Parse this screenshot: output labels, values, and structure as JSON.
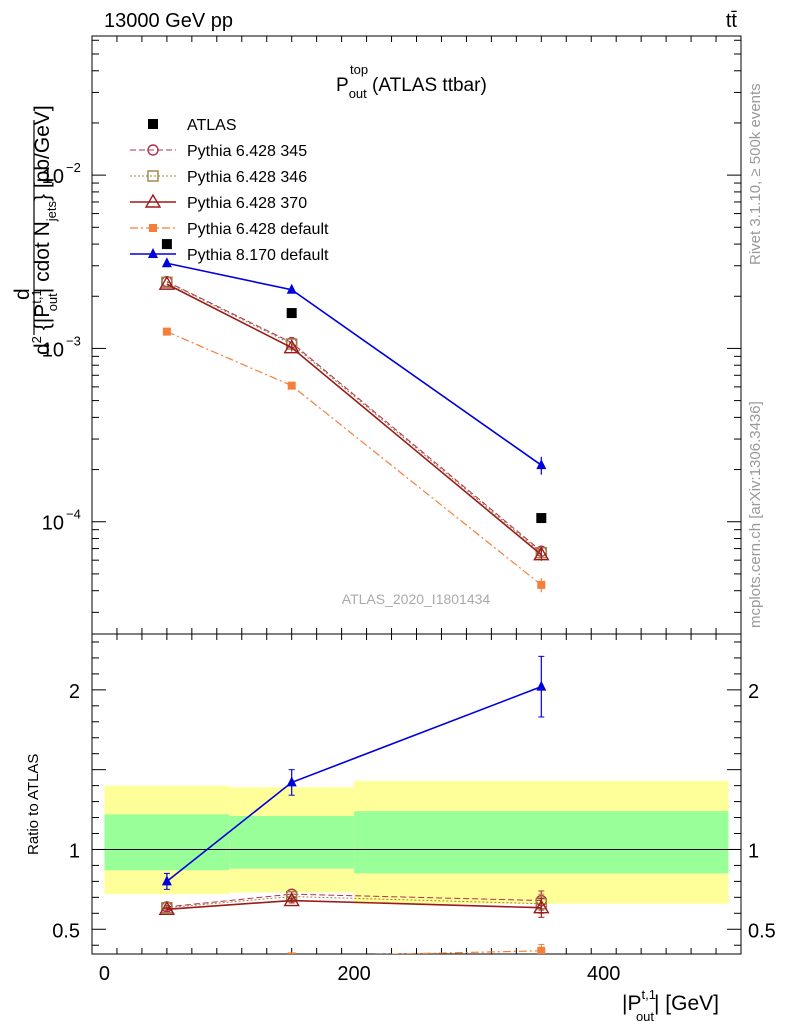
{
  "header": {
    "left": "13000 GeV pp",
    "right": "tt̄"
  },
  "plot_title": {
    "main": "P",
    "sup": "top",
    "sub": "out",
    "suffix": " (ATLAS ttbar)"
  },
  "analysis_label": "ATLAS_2020_I1801434",
  "side_labels": {
    "rivet": "Rivet 3.1.10, ≥ 500k events",
    "mcplots": "mcplots.cern.ch [arXiv:1306.3436]"
  },
  "ylabel_main": {
    "lead": "d",
    "part1": "d",
    "sup1": "2",
    "part2": " {|P",
    "sup2": "t,1",
    "sub2": "out",
    "part3": "| cdot N",
    "sub3": "jets",
    "part4": "} [pb/GeV]"
  },
  "ylabel_ratio": "Ratio to ATLAS",
  "xlabel": {
    "part1": "|P",
    "sup": "t,1",
    "sub": "out",
    "part2": "| [GeV]"
  },
  "colors": {
    "atlas": "#000000",
    "p345": "#b03050",
    "p346": "#a08040",
    "p370": "#9b1b1b",
    "pdefault": "#f47f3a",
    "p8": "#0000dd",
    "band_yellow": "#ffff99",
    "band_green": "#99ff99"
  },
  "chart_data": [
    {
      "type": "line",
      "panel": "main",
      "yscale": "log",
      "xlim": [
        -10,
        510
      ],
      "ylim": [
        2.25e-05,
        0.0635
      ],
      "x_ticks": [
        0,
        200,
        400
      ],
      "y_tick_labels": [
        {
          "value": 0.01,
          "base": "10",
          "exp": "−2"
        },
        {
          "value": 0.001,
          "base": "10",
          "exp": "−3"
        },
        {
          "value": 0.0001,
          "base": "10",
          "exp": "−4"
        }
      ],
      "x": [
        50,
        150,
        350
      ],
      "series": [
        {
          "name": "ATLAS",
          "key": "atlas",
          "values": [
            0.004,
            0.0016,
            0.000105
          ],
          "marker": "square",
          "line": "none"
        },
        {
          "name": "Pythia 6.428 345",
          "key": "p345",
          "values": [
            0.00243,
            0.00108,
            6.76e-05
          ],
          "marker": "circle-open",
          "line": "dashed",
          "errors": [
            0,
            5e-05,
            5e-06
          ]
        },
        {
          "name": "Pythia 6.428 346",
          "key": "p346",
          "values": [
            0.00241,
            0.00106,
            6.62e-05
          ],
          "marker": "square-open",
          "line": "dotted",
          "errors": [
            0,
            5e-05,
            5e-06
          ]
        },
        {
          "name": "Pythia 6.428 370",
          "key": "p370",
          "values": [
            0.00235,
            0.00101,
            6.45e-05
          ],
          "marker": "triangle-open",
          "line": "solid",
          "errors": [
            0,
            5e-05,
            5e-06
          ]
        },
        {
          "name": "Pythia 6.428 default",
          "key": "pdefault",
          "values": [
            0.00125,
            0.00061,
            4.32e-05
          ],
          "marker": "square-filled",
          "line": "dashdot",
          "errors": [
            0,
            3e-05,
            4e-06
          ]
        },
        {
          "name": "Pythia 8.170 default",
          "key": "p8",
          "values": [
            0.0031,
            0.00218,
            0.000212
          ],
          "marker": "triangle-filled",
          "line": "solid",
          "errors": [
            0,
            0.0001,
            2.5e-05
          ]
        }
      ]
    },
    {
      "type": "line",
      "panel": "ratio",
      "ylabel": "Ratio to ATLAS",
      "xlim": [
        -10,
        510
      ],
      "ylim": [
        0.345,
        2.35
      ],
      "x_ticks": [
        0,
        200,
        400
      ],
      "y_ticks": [
        0.5,
        1,
        2
      ],
      "bands": [
        {
          "x0": 0,
          "x1": 100,
          "yellow": [
            0.72,
            1.4
          ],
          "green": [
            0.87,
            1.22
          ]
        },
        {
          "x0": 100,
          "x1": 200,
          "yellow": [
            0.73,
            1.39
          ],
          "green": [
            0.88,
            1.21
          ]
        },
        {
          "x0": 200,
          "x1": 500,
          "yellow": [
            0.66,
            1.43
          ],
          "green": [
            0.85,
            1.24
          ]
        }
      ],
      "x": [
        50,
        150,
        350
      ],
      "series": [
        {
          "name": "Pythia 6.428 345",
          "key": "p345",
          "values": [
            0.64,
            0.72,
            0.68
          ],
          "errors": [
            0.01,
            0.015,
            0.06
          ]
        },
        {
          "name": "Pythia 6.428 346",
          "key": "p346",
          "values": [
            0.635,
            0.705,
            0.66
          ],
          "errors": [
            0.01,
            0.015,
            0.06
          ]
        },
        {
          "name": "Pythia 6.428 370",
          "key": "p370",
          "values": [
            0.625,
            0.68,
            0.635
          ],
          "errors": [
            0.01,
            0.015,
            0.06
          ]
        },
        {
          "name": "Pythia 6.428 default",
          "key": "pdefault",
          "values": [
            0.31,
            0.33,
            0.365
          ],
          "errors": [
            0.01,
            0.015,
            0.04
          ]
        },
        {
          "name": "Pythia 8.170 default",
          "key": "p8",
          "values": [
            0.8,
            1.42,
            2.02
          ],
          "errors": [
            0.05,
            0.08,
            0.19
          ]
        }
      ]
    }
  ]
}
